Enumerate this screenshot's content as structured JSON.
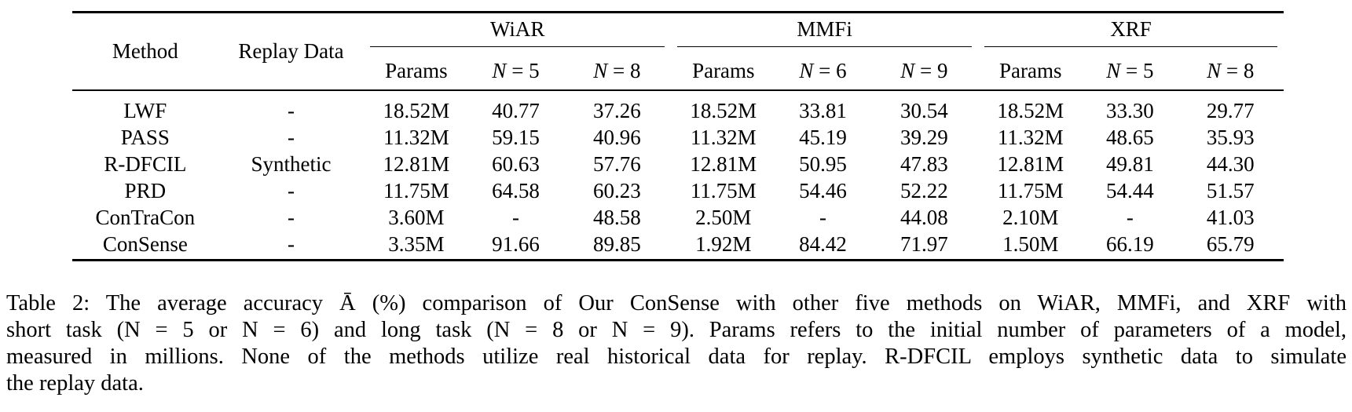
{
  "table": {
    "header": {
      "method": "Method",
      "replay": "Replay Data",
      "groups": [
        {
          "name": "WiAR",
          "cols": [
            "Params",
            "N = 5",
            "N = 8"
          ]
        },
        {
          "name": "MMFi",
          "cols": [
            "Params",
            "N = 6",
            "N = 9"
          ]
        },
        {
          "name": "XRF",
          "cols": [
            "Params",
            "N = 5",
            "N = 8"
          ]
        }
      ]
    },
    "rows": [
      {
        "method": "LWF",
        "replay": "-",
        "values": [
          "18.52M",
          "40.77",
          "37.26",
          "18.52M",
          "33.81",
          "30.54",
          "18.52M",
          "33.30",
          "29.77"
        ]
      },
      {
        "method": "PASS",
        "replay": "-",
        "values": [
          "11.32M",
          "59.15",
          "40.96",
          "11.32M",
          "45.19",
          "39.29",
          "11.32M",
          "48.65",
          "35.93"
        ]
      },
      {
        "method": "R-DFCIL",
        "replay": "Synthetic",
        "values": [
          "12.81M",
          "60.63",
          "57.76",
          "12.81M",
          "50.95",
          "47.83",
          "12.81M",
          "49.81",
          "44.30"
        ]
      },
      {
        "method": "PRD",
        "replay": "-",
        "values": [
          "11.75M",
          "64.58",
          "60.23",
          "11.75M",
          "54.46",
          "52.22",
          "11.75M",
          "54.44",
          "51.57"
        ]
      },
      {
        "method": "ConTraCon",
        "replay": "-",
        "values": [
          "3.60M",
          "-",
          "48.58",
          "2.50M",
          "-",
          "44.08",
          "2.10M",
          "-",
          "41.03"
        ]
      },
      {
        "method": "ConSense",
        "replay": "-",
        "values": [
          "3.35M",
          "91.66",
          "89.85",
          "1.92M",
          "84.42",
          "71.97",
          "1.50M",
          "66.19",
          "65.79"
        ]
      }
    ]
  },
  "caption": {
    "lines": [
      "Table 2: The average accuracy Ā (%) comparison of Our ConSense with other five methods on WiAR, MMFi, and XRF with",
      "short task (N = 5 or N = 6) and long task (N = 8 or N = 9). Params refers to the initial number of parameters of a model,",
      "measured in millions. None of the methods utilize real historical data for replay. R-DFCIL employs synthetic data to simulate",
      "the replay data."
    ]
  }
}
